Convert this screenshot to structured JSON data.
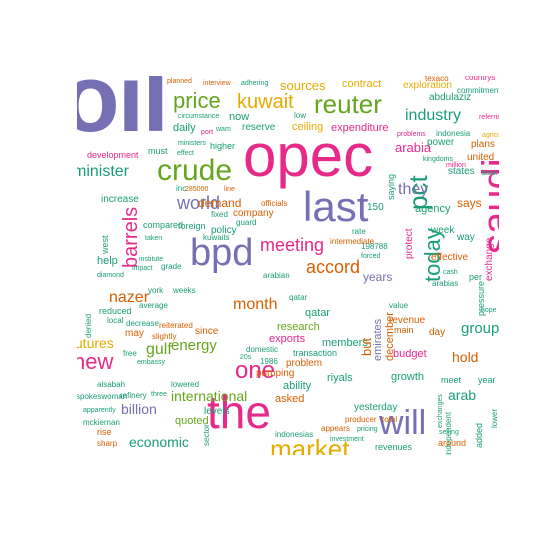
{
  "palette": {
    "purple": "#7570b3",
    "pink": "#e7298a",
    "green": "#66a61e",
    "orange": "#d95f02",
    "teal": "#1b9e77",
    "gold": "#e6ab02",
    "brown": "#a6761d",
    "gray": "#666666"
  },
  "words": [
    {
      "text": "oil",
      "color": "purple"
    },
    {
      "text": "opec",
      "color": "pink"
    },
    {
      "text": "crude",
      "color": "green"
    },
    {
      "text": "reuter",
      "color": "green"
    },
    {
      "text": "price",
      "color": "green"
    },
    {
      "text": "kuwait",
      "color": "gold"
    },
    {
      "text": "last",
      "color": "purple"
    },
    {
      "text": "bpd",
      "color": "purple"
    },
    {
      "text": "the",
      "color": "pink"
    },
    {
      "text": "one",
      "color": "pink"
    },
    {
      "text": "new",
      "color": "pink"
    },
    {
      "text": "will",
      "color": "purple"
    },
    {
      "text": "market",
      "color": "gold"
    },
    {
      "text": "pct",
      "color": "teal"
    },
    {
      "text": "barrels",
      "color": "pink"
    },
    {
      "text": "industry",
      "color": "teal"
    },
    {
      "text": "minister",
      "color": "teal"
    },
    {
      "text": "world",
      "color": "purple"
    },
    {
      "text": "meeting",
      "color": "pink"
    },
    {
      "text": "accord",
      "color": "orange"
    },
    {
      "text": "today",
      "color": "teal"
    },
    {
      "text": "saudi",
      "color": "pink"
    },
    {
      "text": "they",
      "color": "purple"
    },
    {
      "text": "month",
      "color": "orange"
    },
    {
      "text": "gulf",
      "color": "green"
    },
    {
      "text": "energy",
      "color": "green"
    },
    {
      "text": "group",
      "color": "teal"
    },
    {
      "text": "nazer",
      "color": "orange"
    },
    {
      "text": "international",
      "color": "green"
    },
    {
      "text": "billion",
      "color": "purple"
    },
    {
      "text": "economic",
      "color": "teal"
    },
    {
      "text": "futures",
      "color": "gold"
    },
    {
      "text": "sources",
      "color": "gold"
    },
    {
      "text": "demand",
      "color": "orange"
    },
    {
      "text": "arabia",
      "color": "pink"
    },
    {
      "text": "hold",
      "color": "orange"
    },
    {
      "text": "expected",
      "color": "pink"
    },
    {
      "text": "arab",
      "color": "teal"
    },
    {
      "text": "contract",
      "color": "gold"
    },
    {
      "text": "ceiling",
      "color": "gold"
    },
    {
      "text": "expenditure",
      "color": "pink"
    },
    {
      "text": "reserve",
      "color": "teal"
    },
    {
      "text": "now",
      "color": "teal"
    },
    {
      "text": "daily",
      "color": "teal"
    },
    {
      "text": "says",
      "color": "orange"
    },
    {
      "text": "agency",
      "color": "teal"
    },
    {
      "text": "members",
      "color": "teal"
    },
    {
      "text": "research",
      "color": "green"
    },
    {
      "text": "years",
      "color": "purple"
    },
    {
      "text": "riyals",
      "color": "teal"
    },
    {
      "text": "exports",
      "color": "pink"
    },
    {
      "text": "asked",
      "color": "orange"
    },
    {
      "text": "ability",
      "color": "teal"
    },
    {
      "text": "budget",
      "color": "pink"
    },
    {
      "text": "growth",
      "color": "teal"
    },
    {
      "text": "yesterday",
      "color": "teal"
    },
    {
      "text": "quoted",
      "color": "green"
    },
    {
      "text": "exploration",
      "color": "gold"
    },
    {
      "text": "abdulaziz",
      "color": "teal"
    },
    {
      "text": "power",
      "color": "teal"
    },
    {
      "text": "plans",
      "color": "orange"
    },
    {
      "text": "united",
      "color": "orange"
    },
    {
      "text": "states",
      "color": "teal"
    },
    {
      "text": "exchange",
      "color": "pink"
    },
    {
      "text": "help",
      "color": "teal"
    },
    {
      "text": "qatar",
      "color": "teal"
    },
    {
      "text": "company",
      "color": "orange"
    },
    {
      "text": "policy",
      "color": "teal"
    },
    {
      "text": "increase",
      "color": "teal"
    },
    {
      "text": "compared",
      "color": "teal"
    },
    {
      "text": "development",
      "color": "pink"
    },
    {
      "text": "since",
      "color": "orange"
    },
    {
      "text": "levels",
      "color": "teal"
    },
    {
      "text": "week",
      "color": "teal"
    },
    {
      "text": "way",
      "color": "teal"
    },
    {
      "text": "effective",
      "color": "orange"
    },
    {
      "text": "problem",
      "color": "orange"
    },
    {
      "text": "transaction",
      "color": "teal"
    },
    {
      "text": "main",
      "color": "orange"
    },
    {
      "text": "revenue",
      "color": "orange"
    },
    {
      "text": "day",
      "color": "orange"
    },
    {
      "text": "reduced",
      "color": "teal"
    },
    {
      "text": "guard",
      "color": "teal"
    },
    {
      "text": "fixed",
      "color": "teal"
    },
    {
      "text": "kuwaits",
      "color": "teal"
    },
    {
      "text": "interview",
      "color": "orange"
    },
    {
      "text": "adhering",
      "color": "teal"
    },
    {
      "text": "texaco",
      "color": "orange"
    },
    {
      "text": "countrys",
      "color": "pink"
    },
    {
      "text": "commitment",
      "color": "teal"
    },
    {
      "text": "referring",
      "color": "pink"
    },
    {
      "text": "agriculture",
      "color": "gold"
    },
    {
      "text": "indonesia",
      "color": "teal"
    },
    {
      "text": "problems",
      "color": "pink"
    },
    {
      "text": "kingdoms",
      "color": "teal"
    },
    {
      "text": "million",
      "color": "pink"
    },
    {
      "text": "bank",
      "color": "teal"
    },
    {
      "text": "higher",
      "color": "teal"
    },
    {
      "text": "ministers",
      "color": "teal"
    },
    {
      "text": "must",
      "color": "teal"
    },
    {
      "text": "low",
      "color": "teal"
    },
    {
      "text": "saying",
      "color": "teal"
    },
    {
      "text": "150",
      "color": "teal"
    },
    {
      "text": "198788",
      "color": "teal"
    },
    {
      "text": "intermediate",
      "color": "orange"
    },
    {
      "text": "rate",
      "color": "teal"
    },
    {
      "text": "protect",
      "color": "pink"
    },
    {
      "text": "but",
      "color": "orange"
    },
    {
      "text": "emirates",
      "color": "purple"
    },
    {
      "text": "december",
      "color": "orange"
    },
    {
      "text": "planned",
      "color": "orange"
    },
    {
      "text": "circumstance",
      "color": "teal"
    },
    {
      "text": "port",
      "color": "pink"
    },
    {
      "text": "wam",
      "color": "teal"
    },
    {
      "text": "effect",
      "color": "teal"
    },
    {
      "text": "inc",
      "color": "teal"
    },
    {
      "text": "285000",
      "color": "orange"
    },
    {
      "text": "line",
      "color": "orange"
    },
    {
      "text": "officials",
      "color": "orange"
    },
    {
      "text": "arabian",
      "color": "teal"
    },
    {
      "text": "grade",
      "color": "teal"
    },
    {
      "text": "reiterated",
      "color": "orange"
    },
    {
      "text": "average",
      "color": "teal"
    },
    {
      "text": "decrease",
      "color": "teal"
    },
    {
      "text": "local",
      "color": "teal"
    },
    {
      "text": "may",
      "color": "orange"
    },
    {
      "text": "slightly",
      "color": "orange"
    },
    {
      "text": "free",
      "color": "teal"
    },
    {
      "text": "embassy",
      "color": "teal"
    },
    {
      "text": "refinery",
      "color": "teal"
    },
    {
      "text": "three",
      "color": "teal"
    },
    {
      "text": "mckiernan",
      "color": "teal"
    },
    {
      "text": "sharp",
      "color": "orange"
    },
    {
      "text": "rise",
      "color": "orange"
    },
    {
      "text": "pumping",
      "color": "orange"
    },
    {
      "text": "domestic",
      "color": "teal"
    },
    {
      "text": "independent",
      "color": "teal"
    },
    {
      "text": "indonesias",
      "color": "teal"
    },
    {
      "text": "investment",
      "color": "teal"
    },
    {
      "text": "revenues",
      "color": "teal"
    },
    {
      "text": "around",
      "color": "orange"
    },
    {
      "text": "selling",
      "color": "teal"
    },
    {
      "text": "producer",
      "color": "orange"
    },
    {
      "text": "total",
      "color": "orange"
    },
    {
      "text": "appears",
      "color": "orange"
    },
    {
      "text": "pricing",
      "color": "teal"
    },
    {
      "text": "year",
      "color": "teal"
    },
    {
      "text": "meet",
      "color": "teal"
    },
    {
      "text": "added",
      "color": "teal"
    },
    {
      "text": "lower",
      "color": "teal"
    },
    {
      "text": "pressure",
      "color": "teal"
    },
    {
      "text": "exchanges",
      "color": "teal"
    },
    {
      "text": "cash",
      "color": "teal"
    },
    {
      "text": "arabias",
      "color": "teal"
    },
    {
      "text": "per",
      "color": "teal"
    },
    {
      "text": "hope",
      "color": "teal"
    },
    {
      "text": "forced",
      "color": "teal"
    },
    {
      "text": "value",
      "color": "teal"
    },
    {
      "text": "york",
      "color": "teal"
    },
    {
      "text": "weeks",
      "color": "teal"
    },
    {
      "text": "institute",
      "color": "teal"
    },
    {
      "text": "diamond",
      "color": "teal"
    },
    {
      "text": "west",
      "color": "teal"
    },
    {
      "text": "taken",
      "color": "teal"
    },
    {
      "text": "impact",
      "color": "teal"
    },
    {
      "text": "foreign",
      "color": "teal"
    },
    {
      "text": "denied",
      "color": "teal"
    },
    {
      "text": "alsabah",
      "color": "teal"
    },
    {
      "text": "apparently",
      "color": "teal"
    },
    {
      "text": "spokeswoman",
      "color": "teal"
    },
    {
      "text": "lowered",
      "color": "teal"
    },
    {
      "text": "1986",
      "color": "teal"
    },
    {
      "text": "20s",
      "color": "teal"
    },
    {
      "text": "sector",
      "color": "teal"
    },
    {
      "text": "qatar",
      "color": "teal"
    }
  ]
}
